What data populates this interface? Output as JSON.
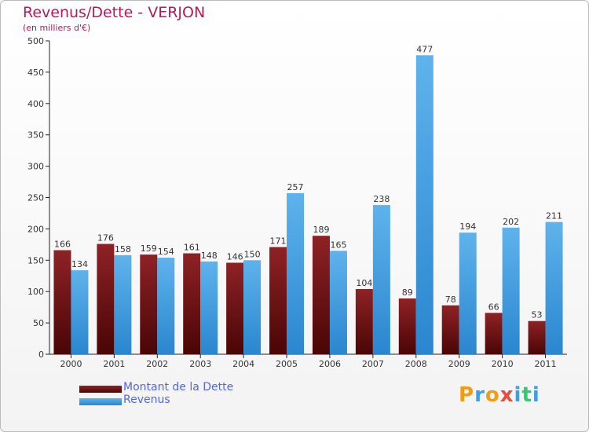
{
  "title": "Revenus/Dette - VERJON",
  "subtitle": "(en milliers d'€)",
  "chart_data": {
    "type": "bar",
    "title": "Revenus/Dette - VERJON",
    "ylabel": "(en milliers d'€)",
    "xlabel": "",
    "categories": [
      "2000",
      "2001",
      "2002",
      "2003",
      "2004",
      "2005",
      "2006",
      "2007",
      "2008",
      "2009",
      "2010",
      "2011"
    ],
    "series": [
      {
        "name": "Montant de la Dette",
        "color": "#6b0a0a",
        "values": [
          166,
          176,
          159,
          161,
          146,
          171,
          189,
          104,
          89,
          78,
          66,
          53
        ]
      },
      {
        "name": "Revenus",
        "color": "#3d9ee6",
        "values": [
          134,
          158,
          154,
          148,
          150,
          257,
          165,
          238,
          477,
          194,
          202,
          211
        ]
      }
    ],
    "ylim": [
      0,
      500
    ],
    "yticks": [
      0,
      50,
      100,
      150,
      200,
      250,
      300,
      350,
      400,
      450,
      500
    ],
    "grid": false,
    "legend": "bottom-left"
  },
  "legend": {
    "debt_label": "Montant de la Dette",
    "revenue_label": "Revenus"
  },
  "logo": {
    "text": "Proxiti",
    "letters": [
      "P",
      "r",
      "o",
      "x",
      "i",
      "t",
      "i"
    ],
    "colors": [
      "#f39c12",
      "#3d9ee6",
      "#f39c12",
      "#e74c3c",
      "#3d9ee6",
      "#2ecc71",
      "#3d9ee6"
    ]
  }
}
